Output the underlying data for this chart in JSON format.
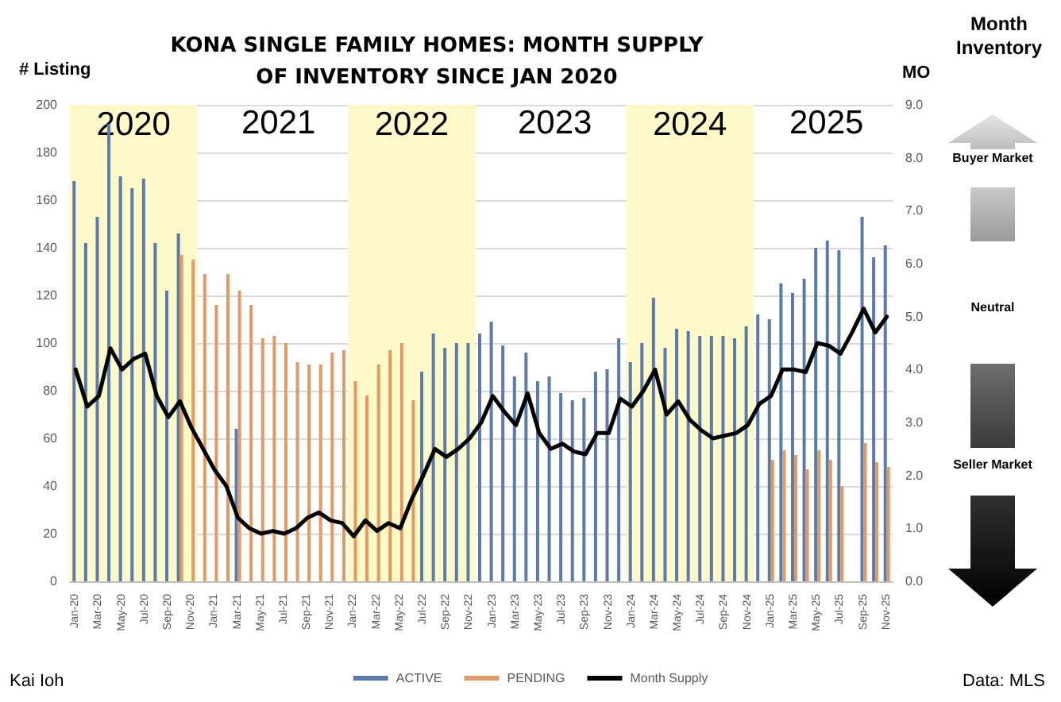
{
  "chart_data": {
    "type": "bar",
    "title": "KONA SINGLE FAMILY HOMES: MONTH SUPPLY\nOF INVENTORY SINCE JAN 2020",
    "ylabel": "# Listing",
    "y2label": "MO",
    "categories": [
      "Jan-20",
      null,
      "Mar-20",
      null,
      "May-20",
      null,
      "Jul-20",
      null,
      "Sep-20",
      null,
      "Nov-20",
      null,
      "Jan-21",
      null,
      "Mar-21",
      null,
      "May-21",
      null,
      "Jul-21",
      null,
      "Sep-21",
      null,
      "Nov-21",
      null,
      "Jan-22",
      null,
      "Mar-22",
      null,
      "May-22",
      null,
      "Jul-22",
      null,
      "Sep-22",
      null,
      "Nov-22",
      null,
      "Jan-23",
      null,
      "Mar-23",
      null,
      "May-23",
      null,
      "Jul-23",
      null,
      "Sep-23",
      null,
      "Nov-23",
      null,
      "Jan-24",
      null,
      "Mar-24",
      null,
      "May-24",
      null,
      "Jul-24",
      null,
      "Sep-24",
      null,
      "Nov-24",
      null,
      "Jan-25",
      null,
      "Mar-25",
      null,
      "May-25",
      null,
      "Jul-25",
      null,
      "Sep-25",
      null,
      "Nov-25"
    ],
    "series": [
      {
        "name": "ACTIVE",
        "color": "#5a7bab",
        "values": [
          168,
          142,
          153,
          192,
          170,
          165,
          169,
          142,
          122,
          146,
          null,
          null,
          null,
          null,
          64,
          null,
          null,
          null,
          null,
          null,
          null,
          null,
          null,
          null,
          null,
          null,
          null,
          null,
          null,
          null,
          88,
          104,
          98,
          100,
          100,
          104,
          109,
          99,
          86,
          96,
          84,
          86,
          79,
          76,
          77,
          88,
          89,
          102,
          92,
          100,
          119,
          98,
          106,
          105,
          103,
          103,
          103,
          102,
          107,
          112,
          110,
          125,
          121,
          127,
          140,
          143,
          139,
          null,
          153,
          136,
          141
        ]
      },
      {
        "name": "PENDING",
        "color": "#e29a62",
        "values": [
          null,
          null,
          null,
          null,
          null,
          null,
          null,
          null,
          null,
          137,
          135,
          129,
          116,
          129,
          122,
          116,
          102,
          103,
          100,
          92,
          91,
          91,
          96,
          97,
          84,
          78,
          91,
          97,
          100,
          76,
          null,
          null,
          null,
          null,
          null,
          null,
          null,
          null,
          null,
          null,
          null,
          null,
          null,
          null,
          null,
          null,
          null,
          null,
          null,
          null,
          null,
          null,
          null,
          null,
          null,
          null,
          null,
          null,
          null,
          null,
          51,
          55,
          53,
          47,
          55,
          51,
          40,
          null,
          58,
          50,
          48
        ]
      },
      {
        "name": "Month Supply",
        "type": "line",
        "axis": "y2",
        "color": "#000000",
        "values": [
          4.0,
          3.3,
          3.5,
          4.4,
          4.0,
          4.2,
          4.3,
          3.5,
          3.1,
          3.4,
          2.9,
          2.5,
          2.1,
          1.8,
          1.2,
          1.0,
          0.9,
          0.95,
          0.9,
          1.0,
          1.2,
          1.3,
          1.15,
          1.1,
          0.85,
          1.15,
          0.95,
          1.1,
          1.0,
          1.55,
          2.0,
          2.5,
          2.35,
          2.5,
          2.7,
          3.0,
          3.5,
          3.2,
          2.95,
          3.55,
          2.8,
          2.5,
          2.6,
          2.45,
          2.4,
          2.8,
          2.8,
          3.45,
          3.3,
          3.6,
          4.0,
          3.15,
          3.4,
          3.05,
          2.85,
          2.7,
          2.75,
          2.8,
          2.95,
          3.35,
          3.5,
          4.0,
          4.0,
          3.95,
          4.5,
          4.45,
          4.3,
          4.7,
          5.15,
          4.7,
          5.0
        ]
      }
    ],
    "ylim": [
      0,
      200
    ],
    "yticks": [
      0,
      20,
      40,
      60,
      80,
      100,
      120,
      140,
      160,
      180,
      200
    ],
    "y2lim": [
      0,
      9
    ],
    "y2ticks": [
      {
        "value": 0,
        "label": "0.0"
      },
      {
        "value": 1,
        "label": "1.0"
      },
      {
        "value": 2,
        "label": "2.0"
      },
      {
        "value": 3,
        "label": "3.0"
      },
      {
        "value": 4,
        "label": "4.0"
      },
      {
        "value": 5,
        "label": "5.0"
      },
      {
        "value": 6,
        "label": "6.0"
      },
      {
        "value": 7,
        "label": "7.0"
      },
      {
        "value": 8,
        "label": "8.0"
      },
      {
        "value": 9,
        "label": "9.0"
      }
    ],
    "bands": [
      {
        "axis": "x",
        "from": "Jan-20",
        "to": "Nov-20",
        "label": "2020",
        "color": "#fdf9c8"
      },
      {
        "axis": "x",
        "from": "Jan-22",
        "to": "Nov-22",
        "label": "2022",
        "color": "#fdf9c8"
      },
      {
        "axis": "x",
        "from": "Jan-24",
        "to": "Nov-24",
        "label": "2024",
        "color": "#fdf9c8"
      }
    ],
    "annotations": [
      "2021",
      "2023",
      "2025",
      "Month Inventory",
      "Buyer Market",
      "Neutral",
      "Seller Market",
      "Kai Ioh",
      "Data: MLS"
    ],
    "legend": "bottom",
    "grid": "y",
    "marker": "none",
    "line_style": "solid"
  }
}
